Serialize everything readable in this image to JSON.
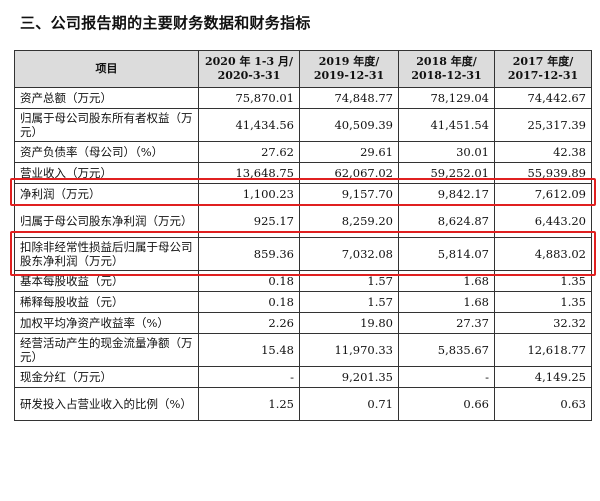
{
  "title": "三、公司报告期的主要财务数据和财务指标",
  "columns": [
    {
      "l1": "项目",
      "l2": ""
    },
    {
      "l1": "2020 年 1-3 月/",
      "l2": "2020-3-31"
    },
    {
      "l1": "2019 年度/",
      "l2": "2019-12-31"
    },
    {
      "l1": "2018 年度/",
      "l2": "2018-12-31"
    },
    {
      "l1": "2017 年度/",
      "l2": "2017-12-31"
    }
  ],
  "rows": [
    {
      "label": "资产总额（万元）",
      "values": [
        "75,870.01",
        "74,848.77",
        "78,129.04",
        "74,442.67"
      ]
    },
    {
      "label": "归属于母公司股东所有者权益（万元）",
      "values": [
        "41,434.56",
        "40,509.39",
        "41,451.54",
        "25,317.39"
      ]
    },
    {
      "label": "资产负债率（母公司）（%）",
      "values": [
        "27.62",
        "29.61",
        "30.01",
        "42.38"
      ]
    },
    {
      "label": "营业收入（万元）",
      "values": [
        "13,648.75",
        "62,067.02",
        "59,252.01",
        "55,939.89"
      ]
    },
    {
      "label": "净利润（万元）",
      "values": [
        "1,100.23",
        "9,157.70",
        "9,842.17",
        "7,612.09"
      ]
    },
    {
      "label": "归属于母公司股东净利润（万元）",
      "values": [
        "925.17",
        "8,259.20",
        "8,624.87",
        "6,443.20"
      ]
    },
    {
      "label": "扣除非经常性损益后归属于母公司股东净利润（万元）",
      "values": [
        "859.36",
        "7,032.08",
        "5,814.07",
        "4,883.02"
      ]
    },
    {
      "label": "基本每股收益（元）",
      "values": [
        "0.18",
        "1.57",
        "1.68",
        "1.35"
      ]
    },
    {
      "label": "稀释每股收益（元）",
      "values": [
        "0.18",
        "1.57",
        "1.68",
        "1.35"
      ]
    },
    {
      "label": "加权平均净资产收益率（%）",
      "values": [
        "2.26",
        "19.80",
        "27.37",
        "32.32"
      ]
    },
    {
      "label": "经营活动产生的现金流量净额（万元）",
      "values": [
        "15.48",
        "11,970.33",
        "5,835.67",
        "12,618.77"
      ]
    },
    {
      "label": "现金分红（万元）",
      "values": [
        "-",
        "9,201.35",
        "-",
        "4,149.25"
      ]
    },
    {
      "label": "研发投入占营业收入的比例（%）",
      "values": [
        "1.25",
        "0.71",
        "0.66",
        "0.63"
      ]
    }
  ],
  "highlight_color": "#e02020"
}
